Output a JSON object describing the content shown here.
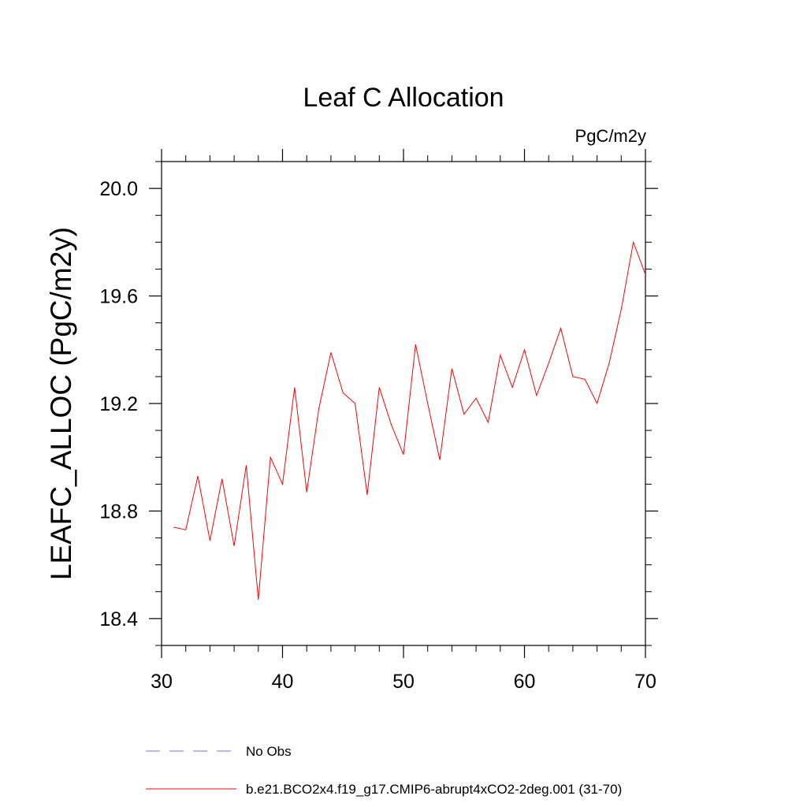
{
  "chart_data": {
    "type": "line",
    "title": "Leaf C Allocation",
    "units_label": "PgC/m2y",
    "xlabel": "",
    "ylabel": "LEAFC_ALLOC  (PgC/m2y)",
    "xlim": [
      30,
      70
    ],
    "ylim": [
      18.3,
      20.1
    ],
    "xticks": [
      30,
      40,
      50,
      60,
      70
    ],
    "xtick_labels": [
      "30",
      "40",
      "50",
      "60",
      "70"
    ],
    "yticks": [
      18.4,
      18.8,
      19.2,
      19.6,
      20.0
    ],
    "ytick_labels": [
      "18.4",
      "18.8",
      "19.2",
      "19.6",
      "20.0"
    ],
    "series": [
      {
        "name": "No Obs",
        "color": "#7b68ee",
        "dash": "dashed",
        "x": [],
        "values": []
      },
      {
        "name": "b.e21.BCO2x4.f19_g17.CMIP6-abrupt4xCO2-2deg.001 (31-70)",
        "color": "#ff0000",
        "dash": "solid",
        "x": [
          31,
          32,
          33,
          34,
          35,
          36,
          37,
          38,
          39,
          40,
          41,
          42,
          43,
          44,
          45,
          46,
          47,
          48,
          49,
          50,
          51,
          52,
          53,
          54,
          55,
          56,
          57,
          58,
          59,
          60,
          61,
          62,
          63,
          64,
          65,
          66,
          67,
          68,
          69,
          70
        ],
        "values": [
          18.74,
          18.73,
          18.93,
          18.69,
          18.92,
          18.67,
          18.97,
          18.47,
          19.0,
          18.9,
          19.26,
          18.87,
          19.18,
          19.39,
          19.24,
          19.2,
          18.86,
          19.26,
          19.12,
          19.01,
          19.42,
          19.2,
          18.99,
          19.33,
          19.16,
          19.22,
          19.13,
          19.38,
          19.26,
          19.4,
          19.23,
          19.35,
          19.48,
          19.3,
          19.29,
          19.2,
          19.35,
          19.55,
          19.8,
          19.68
        ]
      }
    ]
  }
}
